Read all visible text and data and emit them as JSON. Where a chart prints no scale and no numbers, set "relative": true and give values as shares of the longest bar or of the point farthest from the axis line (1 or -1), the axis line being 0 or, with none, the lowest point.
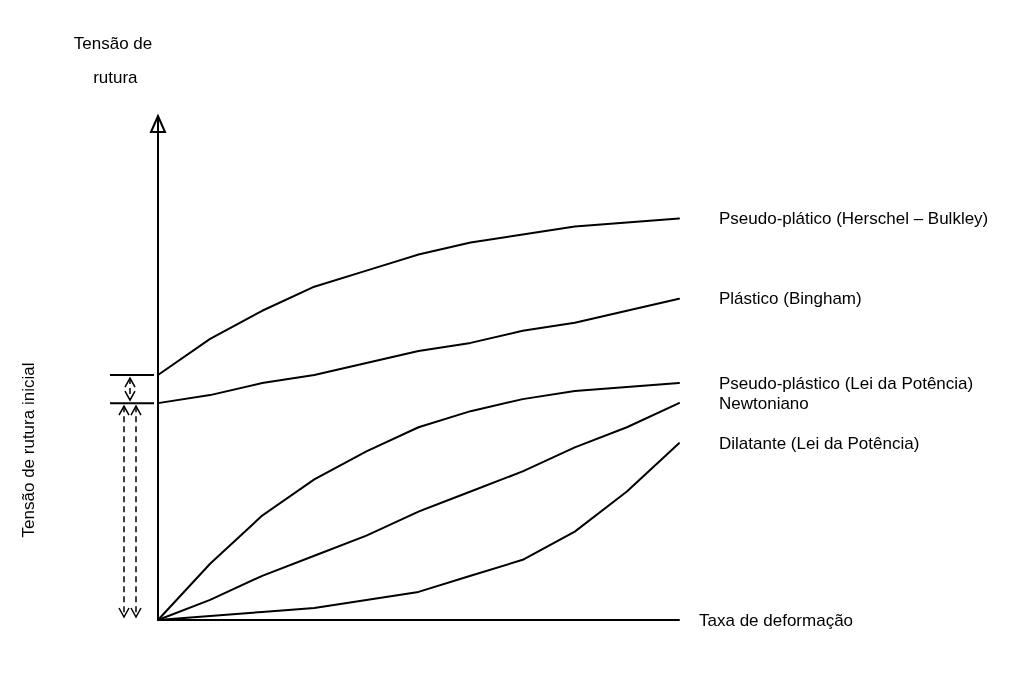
{
  "chart_data": {
    "type": "line",
    "relative": true,
    "xlabel": "Taxa de deformação",
    "annotations": [
      "Tensão de rutura",
      "Tensão de rutura inicial"
    ],
    "grid": false,
    "legend": false,
    "marker": "none",
    "line_style": "solid",
    "categories": [
      null,
      null,
      null,
      null,
      null,
      null,
      null,
      null,
      null,
      null,
      null
    ],
    "series": [
      {
        "name": "Pseudo-plático (Herschel – Bulkley)",
        "color": "#000000",
        "values": [
          0.61,
          0.7,
          0.77,
          0.83,
          0.87,
          0.91,
          0.94,
          0.96,
          0.98,
          0.99,
          1
        ]
      },
      {
        "name": "Plástico (Bingham)",
        "color": "#000000",
        "values": [
          0.54,
          0.56,
          0.59,
          0.61,
          0.64,
          0.67,
          0.69,
          0.72,
          0.74,
          0.77,
          0.8
        ]
      },
      {
        "name": "Pseudo-plástico (Lei da Potência)",
        "color": "#000000",
        "values": [
          0,
          0.14,
          0.26,
          0.35,
          0.42,
          0.48,
          0.52,
          0.55,
          0.57,
          0.58,
          0.59
        ]
      },
      {
        "name": "Newtoniano",
        "color": "#000000",
        "values": [
          0,
          0.05,
          0.11,
          0.16,
          0.21,
          0.27,
          0.32,
          0.37,
          0.43,
          0.48,
          0.54
        ]
      },
      {
        "name": "Dilatante (Lei da Potência)",
        "color": "#000000",
        "values": [
          0,
          0.01,
          0.02,
          0.03,
          0.05,
          0.07,
          0.11,
          0.15,
          0.22,
          0.32,
          0.44
        ]
      }
    ]
  }
}
